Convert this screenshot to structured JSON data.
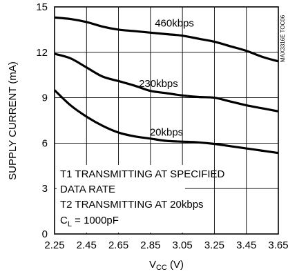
{
  "chart_data": {
    "type": "line",
    "title": "",
    "xlabel": "VCC (V)",
    "xlabel_main": "V",
    "xlabel_sub": "CC",
    "xlabel_unit": " (V)",
    "ylabel": "SUPPLY CURRENT (mA)",
    "xlim": [
      2.25,
      3.65
    ],
    "ylim": [
      0,
      15
    ],
    "grid": true,
    "x_ticks": [
      "2.25",
      "2.45",
      "2.65",
      "2.85",
      "3.05",
      "3.25",
      "3.45",
      "3.65"
    ],
    "y_ticks": [
      "0",
      "3",
      "6",
      "9",
      "12",
      "15"
    ],
    "series": [
      {
        "name": "460kbps",
        "x": [
          2.25,
          2.35,
          2.45,
          2.55,
          2.65,
          2.75,
          2.85,
          2.95,
          3.05,
          3.15,
          3.25,
          3.35,
          3.45,
          3.55,
          3.65
        ],
        "y": [
          14.3,
          14.2,
          14.0,
          13.7,
          13.5,
          13.4,
          13.3,
          13.2,
          13.1,
          12.9,
          12.7,
          12.4,
          12.1,
          11.7,
          11.4
        ]
      },
      {
        "name": "230kbps",
        "x": [
          2.25,
          2.35,
          2.45,
          2.55,
          2.65,
          2.75,
          2.85,
          2.95,
          3.05,
          3.15,
          3.25,
          3.35,
          3.45,
          3.55,
          3.65
        ],
        "y": [
          11.9,
          11.6,
          11.0,
          10.4,
          10.1,
          9.8,
          9.45,
          9.3,
          9.15,
          9.05,
          9.0,
          8.75,
          8.5,
          8.3,
          8.1
        ]
      },
      {
        "name": "20kbps",
        "x": [
          2.25,
          2.35,
          2.45,
          2.55,
          2.65,
          2.75,
          2.85,
          2.95,
          3.05,
          3.15,
          3.25,
          3.35,
          3.45,
          3.55,
          3.65
        ],
        "y": [
          9.5,
          8.5,
          7.75,
          7.15,
          6.7,
          6.45,
          6.3,
          6.15,
          6.1,
          6.05,
          5.95,
          5.8,
          5.65,
          5.5,
          5.35
        ]
      }
    ],
    "series_labels": [
      {
        "text": "460kbps",
        "x": 3.0,
        "y": 13.7
      },
      {
        "text": "230kbps",
        "x": 2.9,
        "y": 9.7
      },
      {
        "text": "20kbps",
        "x": 2.95,
        "y": 6.5
      }
    ],
    "annotations": {
      "line1": "T1 TRANSMITTING AT SPECIFIED",
      "line2": "DATA RATE",
      "line3": "T2 TRANSMITTING AT 20kbps",
      "line4_main": "C",
      "line4_sub": "L",
      "line4_rest": " = 1000pF"
    },
    "watermark": "MAX3316E TOC06"
  }
}
